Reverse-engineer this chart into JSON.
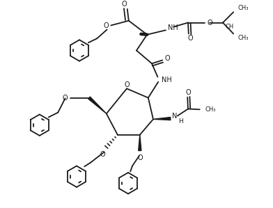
{
  "bg": "#ffffff",
  "lc": "#1a1a1a",
  "lw": 1.3,
  "fs": 6.5,
  "fw": 3.92,
  "fh": 2.99,
  "dpi": 100,
  "xlim": [
    0,
    9.8
  ],
  "ylim": [
    0,
    7.4
  ]
}
